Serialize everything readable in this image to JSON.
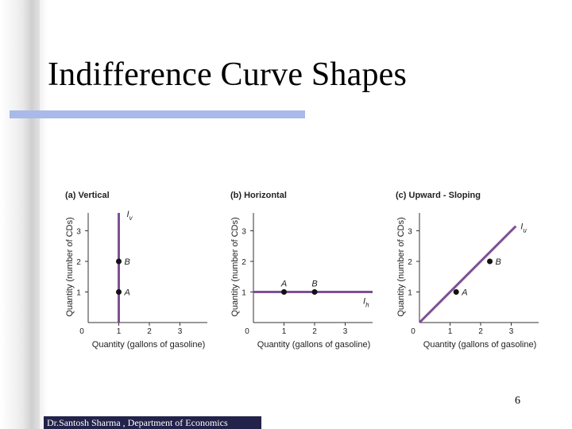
{
  "slide": {
    "title": "Indifference Curve Shapes",
    "page_number": "6",
    "footer": "Dr.Santosh Sharma , Department of Economics"
  },
  "colors": {
    "curve": "#7e4f93",
    "title_rule": "#a9b9e8",
    "footer_bg": "#22224a"
  },
  "panels": [
    {
      "label": "(a) Vertical",
      "y_axis_label": "Quantity (number of CDs)",
      "x_axis_label": "Quantity (gallons of gasoline)",
      "x_ticks": [
        "0",
        "1",
        "2",
        "3"
      ],
      "y_ticks": [
        "1",
        "2",
        "3"
      ],
      "curve_label": "I",
      "curve_sub": "v",
      "curve": {
        "type": "vertical",
        "from": [
          1,
          0
        ],
        "to": [
          1,
          3.5
        ]
      },
      "points": [
        {
          "name": "A",
          "x": 1,
          "y": 1
        },
        {
          "name": "B",
          "x": 1,
          "y": 2
        }
      ]
    },
    {
      "label": "(b) Horizontal",
      "y_axis_label": "Quantity (number of CDs)",
      "x_axis_label": "Quantity (gallons of gasoline)",
      "x_ticks": [
        "0",
        "1",
        "2",
        "3"
      ],
      "y_ticks": [
        "1",
        "2",
        "3"
      ],
      "curve_label": "I",
      "curve_sub": "h",
      "curve": {
        "type": "horizontal",
        "from": [
          0,
          1
        ],
        "to": [
          4,
          1
        ]
      },
      "points": [
        {
          "name": "A",
          "x": 1,
          "y": 1
        },
        {
          "name": "B",
          "x": 2,
          "y": 1
        }
      ]
    },
    {
      "label": "(c) Upward - Sloping",
      "y_axis_label": "Quantity (number of CDs)",
      "x_axis_label": "Quantity (gallons of gasoline)",
      "x_ticks": [
        "0",
        "1",
        "2",
        "3"
      ],
      "y_ticks": [
        "1",
        "2",
        "3"
      ],
      "curve_label": "I",
      "curve_sub": "u",
      "curve": {
        "type": "upward",
        "from": [
          0,
          0
        ],
        "to": [
          3.15,
          3.15
        ]
      },
      "points": [
        {
          "name": "A",
          "x": 1.2,
          "y": 1
        },
        {
          "name": "B",
          "x": 2.3,
          "y": 2
        }
      ]
    }
  ]
}
